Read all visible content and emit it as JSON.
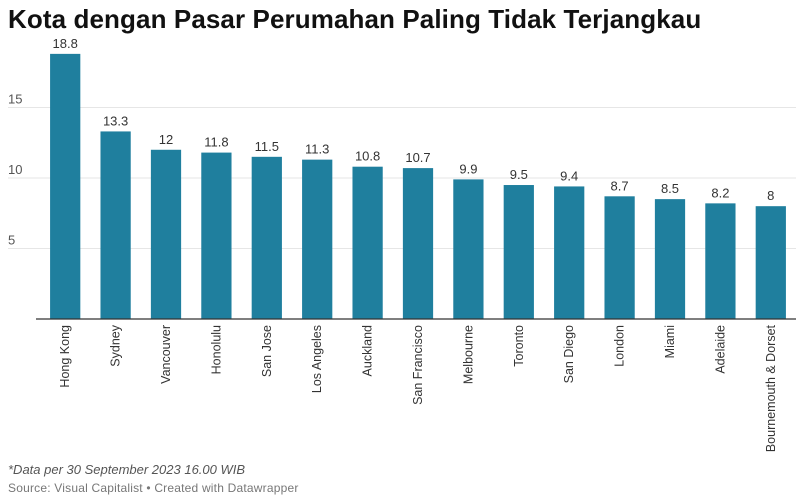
{
  "title": "Kota dengan Pasar Perumahan Paling Tidak Terjangkau",
  "footnote": "*Data per 30 September 2023 16.00 WIB",
  "source": "Source: Visual Capitalist • Created with Datawrapper",
  "colors": {
    "bar": "#1f7f9e",
    "grid": "#e6e6e6",
    "axis": "#333333",
    "text": "#333333"
  },
  "chart_data": {
    "type": "bar",
    "categories": [
      "Hong Kong",
      "Sydney",
      "Vancouver",
      "Honolulu",
      "San Jose",
      "Los Angeles",
      "Auckland",
      "San Francisco",
      "Melbourne",
      "Toronto",
      "San Diego",
      "London",
      "Miami",
      "Adelaide",
      "Bournemouth & Dorset"
    ],
    "values": [
      18.8,
      13.3,
      12,
      11.8,
      11.5,
      11.3,
      10.8,
      10.7,
      9.9,
      9.5,
      9.4,
      8.7,
      8.5,
      8.2,
      8
    ],
    "value_labels": [
      "18.8",
      "13.3",
      "12",
      "11.8",
      "11.5",
      "11.3",
      "10.8",
      "10.7",
      "9.9",
      "9.5",
      "9.4",
      "8.7",
      "8.5",
      "8.2",
      "8"
    ],
    "yticks": [
      "5",
      "10",
      "15"
    ],
    "ylim": [
      0,
      19.5
    ],
    "grid": true,
    "legend": "none"
  }
}
